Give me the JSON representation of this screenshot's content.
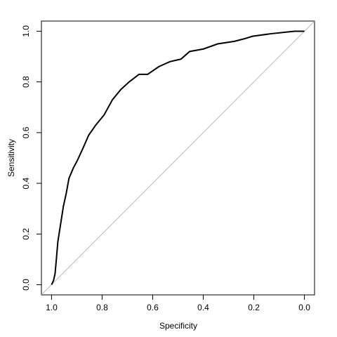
{
  "chart_data": {
    "type": "line",
    "x_label": "Specificity",
    "y_label": "Sensitivity",
    "xlim": [
      1.04,
      -0.04
    ],
    "ylim": [
      -0.04,
      1.04
    ],
    "xticks": [
      {
        "value": 1,
        "label": "1.0"
      },
      {
        "value": 0.8,
        "label": "0.8"
      },
      {
        "value": 0.6,
        "label": "0.6"
      },
      {
        "value": 0.4,
        "label": "0.4"
      },
      {
        "value": 0.2,
        "label": "0.2"
      },
      {
        "value": 0,
        "label": "0.0"
      }
    ],
    "yticks": [
      {
        "value": 0,
        "label": "0.0"
      },
      {
        "value": 0.2,
        "label": "0.2"
      },
      {
        "value": 0.4,
        "label": "0.4"
      },
      {
        "value": 0.6,
        "label": "0.6"
      },
      {
        "value": 0.8,
        "label": "0.8"
      },
      {
        "value": 1,
        "label": "1.0"
      }
    ],
    "diagonal": {
      "slope": -1,
      "intercept": 1,
      "color": "#bbbbbb"
    },
    "series": [
      {
        "color": "#000000",
        "x": [
          1.0,
          0.992,
          0.986,
          0.981,
          0.975,
          0.964,
          0.953,
          0.942,
          0.931,
          0.914,
          0.898,
          0.875,
          0.853,
          0.825,
          0.792,
          0.759,
          0.726,
          0.693,
          0.654,
          0.62,
          0.576,
          0.532,
          0.488,
          0.454,
          0.399,
          0.343,
          0.277,
          0.238,
          0.205,
          0.133,
          0.066,
          0.039,
          0.0
        ],
        "values": [
          0.0,
          0.017,
          0.044,
          0.1,
          0.17,
          0.24,
          0.31,
          0.36,
          0.42,
          0.46,
          0.49,
          0.54,
          0.59,
          0.63,
          0.67,
          0.73,
          0.77,
          0.8,
          0.83,
          0.83,
          0.86,
          0.88,
          0.89,
          0.92,
          0.93,
          0.95,
          0.96,
          0.97,
          0.98,
          0.99,
          0.997,
          1.0,
          1.0
        ]
      }
    ]
  }
}
